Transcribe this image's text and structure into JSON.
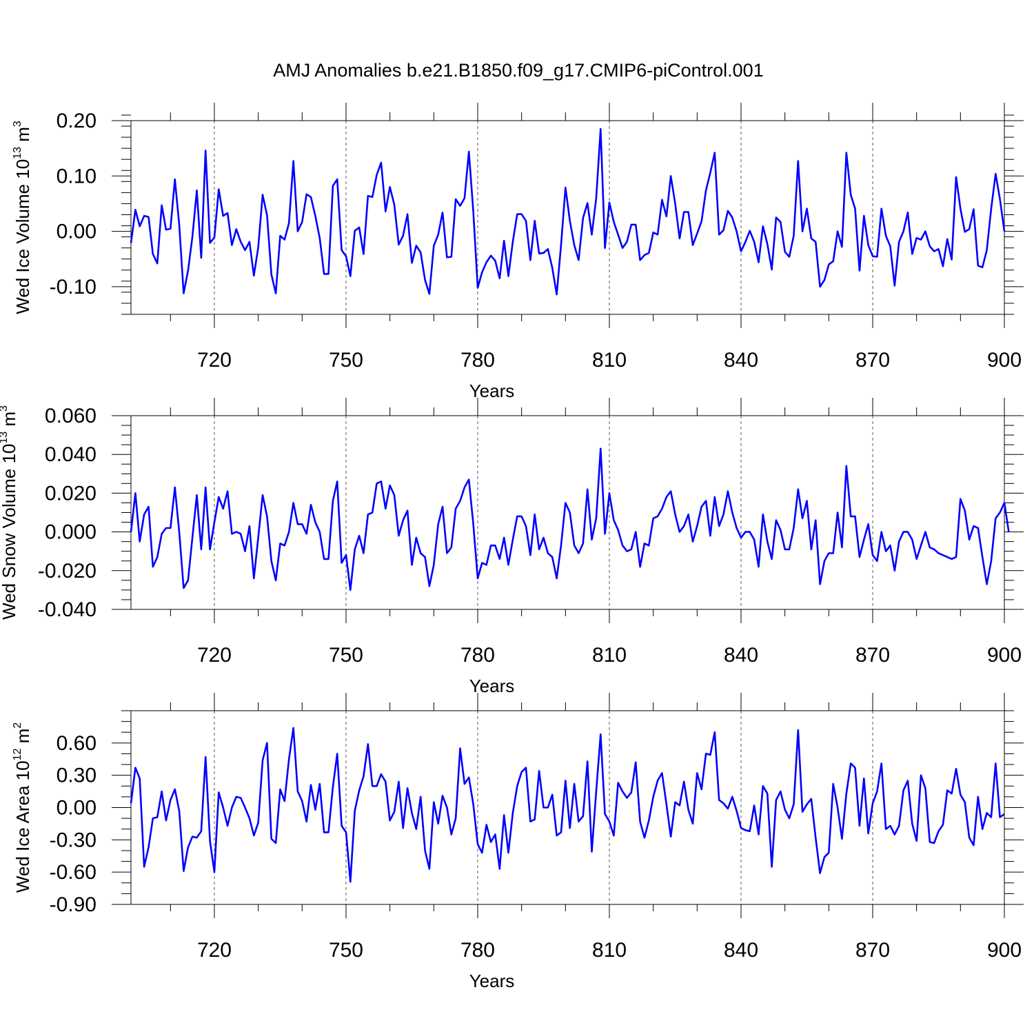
{
  "title": "AMJ Anomalies b.e21.B1850.f09_g17.CMIP6-piControl.001",
  "line_color": "#0000ff",
  "chart_data": [
    {
      "type": "line",
      "ylabel": {
        "main": "Wed Ice Volume 10",
        "exp": "13",
        "unit": " m",
        "unit_exp": "3"
      },
      "xlabel": "Years",
      "xlim": [
        701,
        900
      ],
      "ylim": [
        -0.15,
        0.2
      ],
      "x_ticks": [
        720,
        750,
        780,
        810,
        840,
        870,
        900
      ],
      "x_tick_labels": [
        "720",
        "750",
        "780",
        "810",
        "840",
        "870",
        "900"
      ],
      "y_ticks": [
        0.2,
        0.1,
        0.0,
        -0.1
      ],
      "y_tick_labels": [
        "0.20",
        "0.10",
        "0.00",
        "-0.10"
      ],
      "y_minor_step": 0.02,
      "x_start": 701,
      "values": [
        -0.021,
        0.039,
        0.009,
        0.028,
        0.026,
        -0.041,
        -0.058,
        0.047,
        0.003,
        0.005,
        0.094,
        0.012,
        -0.112,
        -0.071,
        -0.01,
        0.074,
        -0.048,
        0.146,
        -0.021,
        -0.011,
        0.076,
        0.028,
        0.033,
        -0.025,
        0.004,
        -0.019,
        -0.034,
        -0.019,
        -0.08,
        -0.029,
        0.066,
        0.029,
        -0.078,
        -0.112,
        -0.008,
        -0.015,
        0.015,
        0.127,
        0.0,
        0.017,
        0.067,
        0.062,
        0.028,
        -0.012,
        -0.077,
        -0.077,
        0.082,
        0.094,
        -0.034,
        -0.045,
        -0.081,
        0.001,
        0.007,
        -0.041,
        0.064,
        0.062,
        0.102,
        0.124,
        0.036,
        0.08,
        0.048,
        -0.024,
        -0.008,
        0.031,
        -0.057,
        -0.026,
        -0.038,
        -0.088,
        -0.113,
        -0.026,
        -0.006,
        0.034,
        -0.047,
        -0.046,
        0.058,
        0.046,
        0.06,
        0.144,
        0.036,
        -0.102,
        -0.074,
        -0.056,
        -0.044,
        -0.053,
        -0.085,
        -0.017,
        -0.081,
        -0.019,
        0.031,
        0.031,
        0.019,
        -0.052,
        0.019,
        -0.04,
        -0.039,
        -0.032,
        -0.066,
        -0.114,
        -0.025,
        0.079,
        0.019,
        -0.025,
        -0.052,
        0.024,
        0.051,
        -0.006,
        0.06,
        0.185,
        -0.03,
        0.052,
        0.017,
        -0.006,
        -0.03,
        -0.019,
        0.012,
        0.012,
        -0.052,
        -0.043,
        -0.039,
        -0.002,
        -0.006,
        0.057,
        0.027,
        0.1,
        0.05,
        -0.013,
        0.035,
        0.035,
        -0.025,
        -0.004,
        0.018,
        0.074,
        0.106,
        0.142,
        -0.006,
        0.002,
        0.037,
        0.025,
        0.0,
        -0.036,
        -0.019,
        0.001,
        -0.019,
        -0.056,
        0.009,
        -0.023,
        -0.069,
        0.025,
        0.017,
        -0.037,
        -0.046,
        -0.008,
        0.127,
        0.0,
        0.041,
        -0.013,
        -0.019,
        -0.1,
        -0.088,
        -0.06,
        -0.054,
        0.0,
        -0.028,
        0.142,
        0.066,
        0.041,
        -0.071,
        0.028,
        -0.025,
        -0.045,
        -0.046,
        0.041,
        -0.008,
        -0.027,
        -0.098,
        -0.019,
        0.0,
        0.034,
        -0.041,
        -0.012,
        -0.015,
        0.0,
        -0.027,
        -0.036,
        -0.032,
        -0.063,
        -0.014,
        -0.051,
        0.098,
        0.041,
        -0.001,
        0.004,
        0.04,
        -0.062,
        -0.065,
        -0.034,
        0.041,
        0.104,
        0.058,
        0.0
      ]
    },
    {
      "type": "line",
      "ylabel": {
        "main": "Wed Snow Volume 10",
        "exp": "13",
        "unit": " m",
        "unit_exp": "3"
      },
      "xlabel": "Years",
      "xlim": [
        701,
        900
      ],
      "ylim": [
        -0.04,
        0.06
      ],
      "x_ticks": [
        720,
        750,
        780,
        810,
        840,
        870,
        900
      ],
      "x_tick_labels": [
        "720",
        "750",
        "780",
        "810",
        "840",
        "870",
        "900"
      ],
      "y_ticks": [
        0.06,
        0.04,
        0.02,
        0.0,
        -0.02,
        -0.04
      ],
      "y_tick_labels": [
        "0.060",
        "0.040",
        "0.020",
        "0.000",
        "-0.020",
        "-0.040"
      ],
      "y_minor_step": 0.005,
      "x_start": 701,
      "values": [
        0.0,
        0.02,
        -0.005,
        0.009,
        0.013,
        -0.018,
        -0.013,
        -0.001,
        0.002,
        0.002,
        0.023,
        0.0,
        -0.029,
        -0.025,
        -0.003,
        0.019,
        -0.009,
        0.023,
        -0.009,
        0.005,
        0.018,
        0.012,
        0.021,
        -0.001,
        0.0,
        -0.001,
        -0.01,
        0.003,
        -0.024,
        -0.003,
        0.019,
        0.008,
        -0.015,
        -0.025,
        -0.006,
        -0.007,
        0.0,
        0.015,
        0.004,
        0.004,
        -0.001,
        0.014,
        0.005,
        0.0,
        -0.014,
        -0.014,
        0.016,
        0.026,
        -0.016,
        -0.012,
        -0.03,
        -0.009,
        -0.002,
        -0.011,
        0.009,
        0.01,
        0.025,
        0.026,
        0.012,
        0.024,
        0.019,
        -0.002,
        0.006,
        0.011,
        -0.017,
        -0.003,
        -0.011,
        -0.013,
        -0.028,
        -0.017,
        0.004,
        0.013,
        -0.011,
        -0.008,
        0.012,
        0.016,
        0.023,
        0.027,
        0.004,
        -0.024,
        -0.016,
        -0.017,
        -0.007,
        -0.007,
        -0.014,
        -0.003,
        -0.017,
        -0.004,
        0.008,
        0.008,
        0.003,
        -0.012,
        0.009,
        -0.009,
        -0.003,
        -0.011,
        -0.013,
        -0.024,
        -0.007,
        0.015,
        0.01,
        -0.007,
        -0.011,
        -0.006,
        0.022,
        -0.004,
        0.007,
        0.043,
        -0.001,
        0.02,
        0.006,
        0.001,
        -0.007,
        -0.01,
        -0.009,
        0.0,
        -0.018,
        -0.006,
        -0.007,
        0.007,
        0.008,
        0.012,
        0.018,
        0.021,
        0.009,
        0.0,
        0.003,
        0.009,
        -0.005,
        0.003,
        0.013,
        0.016,
        -0.002,
        0.018,
        0.003,
        0.009,
        0.021,
        0.01,
        0.002,
        -0.003,
        0.0,
        0.0,
        -0.004,
        -0.018,
        0.009,
        -0.005,
        -0.014,
        0.006,
        0.001,
        -0.009,
        -0.009,
        0.002,
        0.022,
        0.007,
        0.016,
        -0.009,
        0.006,
        -0.027,
        -0.015,
        -0.011,
        -0.011,
        0.01,
        -0.008,
        0.034,
        0.008,
        0.008,
        -0.013,
        -0.004,
        0.004,
        -0.012,
        -0.015,
        0.0,
        -0.01,
        -0.007,
        -0.02,
        -0.005,
        0.0,
        0.0,
        -0.004,
        -0.014,
        -0.007,
        0.0,
        -0.008,
        -0.009,
        -0.011,
        -0.012,
        -0.013,
        -0.014,
        -0.013,
        0.017,
        0.011,
        -0.004,
        0.003,
        0.002,
        -0.013,
        -0.027,
        -0.015,
        0.007,
        0.01,
        0.015,
        0.0
      ]
    },
    {
      "type": "line",
      "ylabel": {
        "main": "Wed Ice Area 10",
        "exp": "12",
        "unit": " m",
        "unit_exp": "2"
      },
      "xlabel": "Years",
      "xlim": [
        701,
        900
      ],
      "ylim": [
        -0.9,
        0.9
      ],
      "x_ticks": [
        720,
        750,
        780,
        810,
        840,
        870,
        900
      ],
      "x_tick_labels": [
        "720",
        "750",
        "780",
        "810",
        "840",
        "870",
        "900"
      ],
      "y_ticks": [
        0.6,
        0.3,
        0.0,
        -0.3,
        -0.6,
        -0.9
      ],
      "y_tick_labels": [
        "0.60",
        "0.30",
        "0.00",
        "-0.30",
        "-0.60",
        "-0.90"
      ],
      "y_minor_step": 0.1,
      "x_start": 701,
      "values": [
        0.04,
        0.37,
        0.27,
        -0.55,
        -0.37,
        -0.1,
        -0.09,
        0.15,
        -0.12,
        0.07,
        0.17,
        -0.03,
        -0.59,
        -0.37,
        -0.27,
        -0.28,
        -0.22,
        0.47,
        -0.31,
        -0.6,
        0.14,
        0.0,
        -0.17,
        0.0,
        0.1,
        0.09,
        0.0,
        -0.1,
        -0.26,
        -0.14,
        0.44,
        0.6,
        -0.29,
        -0.33,
        0.17,
        0.06,
        0.45,
        0.74,
        0.15,
        0.06,
        -0.13,
        0.21,
        -0.02,
        0.22,
        -0.23,
        -0.23,
        0.19,
        0.5,
        -0.17,
        -0.23,
        -0.69,
        -0.03,
        0.16,
        0.29,
        0.59,
        0.2,
        0.2,
        0.31,
        0.24,
        -0.12,
        -0.04,
        0.24,
        -0.19,
        0.18,
        -0.05,
        -0.2,
        0.1,
        -0.4,
        -0.57,
        0.05,
        -0.15,
        0.11,
        0.0,
        -0.25,
        -0.1,
        0.55,
        0.22,
        0.28,
        0.03,
        -0.34,
        -0.42,
        -0.16,
        -0.32,
        -0.25,
        -0.57,
        -0.07,
        -0.42,
        -0.05,
        0.2,
        0.33,
        0.37,
        -0.13,
        -0.11,
        0.34,
        0.0,
        0.0,
        0.12,
        -0.26,
        -0.23,
        0.25,
        -0.19,
        0.22,
        -0.13,
        -0.08,
        0.43,
        -0.41,
        0.15,
        0.68,
        -0.06,
        -0.13,
        -0.26,
        0.23,
        0.15,
        0.09,
        0.14,
        0.42,
        -0.13,
        -0.28,
        -0.12,
        0.1,
        0.25,
        0.32,
        0.03,
        -0.27,
        0.05,
        0.02,
        0.24,
        -0.02,
        -0.15,
        0.32,
        0.17,
        0.5,
        0.49,
        0.7,
        0.07,
        0.04,
        -0.01,
        0.1,
        -0.03,
        -0.19,
        -0.21,
        -0.22,
        0.02,
        -0.25,
        0.2,
        0.13,
        -0.55,
        0.07,
        0.15,
        -0.02,
        -0.1,
        0.03,
        0.72,
        -0.04,
        0.03,
        0.08,
        -0.28,
        -0.61,
        -0.46,
        -0.42,
        0.22,
        0.0,
        -0.29,
        0.13,
        0.41,
        0.37,
        -0.17,
        0.27,
        -0.24,
        0.04,
        0.15,
        0.41,
        -0.2,
        -0.17,
        -0.25,
        -0.17,
        0.16,
        0.25,
        -0.15,
        -0.31,
        0.3,
        0.18,
        -0.32,
        -0.33,
        -0.22,
        -0.16,
        0.16,
        0.13,
        0.36,
        0.12,
        0.05,
        -0.28,
        -0.35,
        0.1,
        -0.2,
        -0.05,
        -0.09,
        0.41,
        -0.09,
        -0.06
      ]
    }
  ]
}
